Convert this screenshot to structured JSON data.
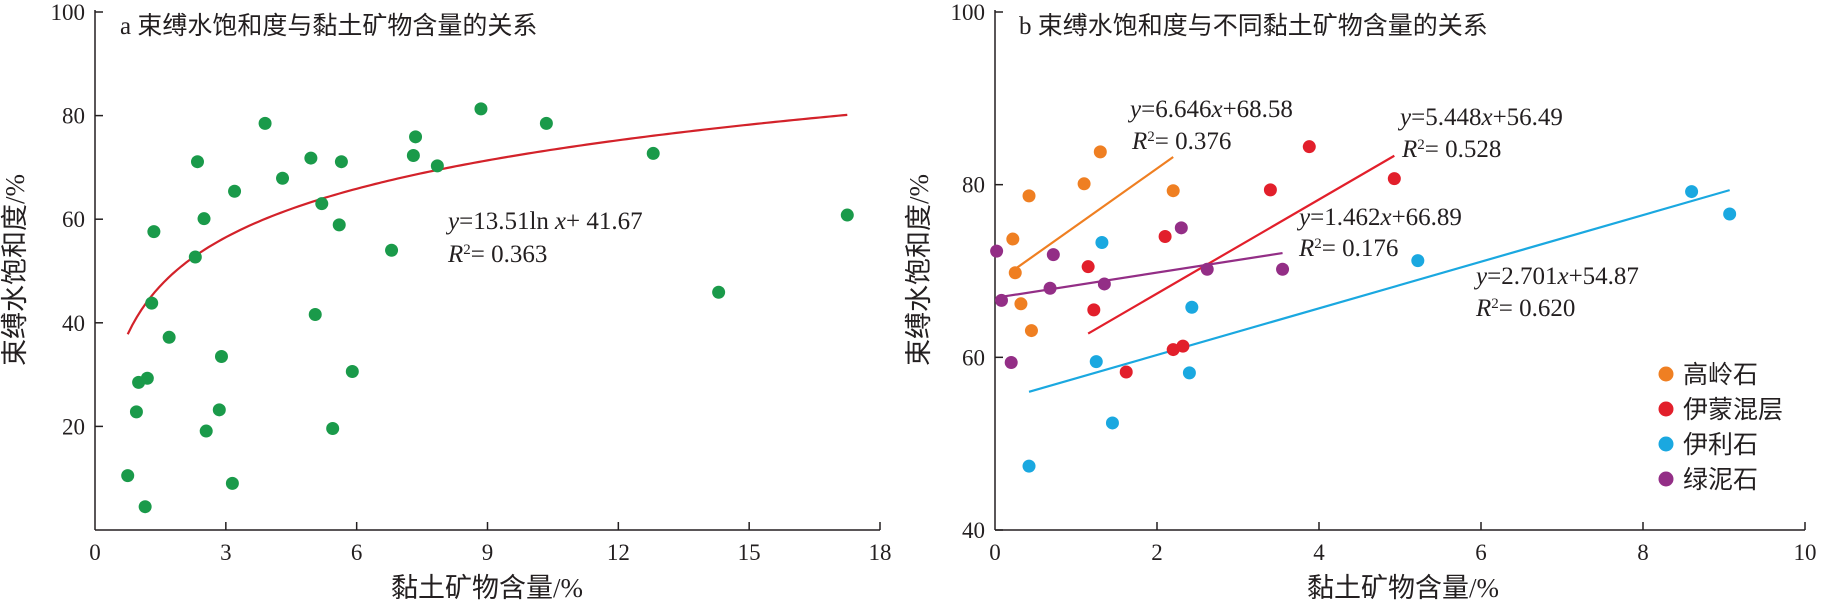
{
  "chart_data": [
    {
      "type": "scatter",
      "title": "a 束缚水饱和度与黏土矿物含量的关系",
      "xlabel": "黏土矿物含量/%",
      "ylabel": "束缚水饱和度/%",
      "xlim": [
        0,
        18
      ],
      "ylim": [
        0,
        100
      ],
      "xticks": [
        "0",
        "3",
        "6",
        "9",
        "12",
        "15",
        "18"
      ],
      "yticks": [
        "20",
        "40",
        "60",
        "80",
        "100"
      ],
      "grid": false,
      "point_color": "#1a9a4a",
      "fit_color": "#d3222a",
      "points": [
        [
          0.75,
          10.5
        ],
        [
          0.95,
          22.8
        ],
        [
          1.0,
          28.5
        ],
        [
          1.15,
          4.5
        ],
        [
          1.2,
          29.3
        ],
        [
          1.3,
          43.8
        ],
        [
          1.35,
          57.6
        ],
        [
          1.7,
          37.2
        ],
        [
          2.3,
          52.7
        ],
        [
          2.35,
          71.1
        ],
        [
          2.5,
          60.1
        ],
        [
          2.55,
          19.1
        ],
        [
          2.85,
          23.2
        ],
        [
          2.9,
          33.5
        ],
        [
          3.15,
          9.0
        ],
        [
          3.2,
          65.4
        ],
        [
          3.9,
          78.5
        ],
        [
          4.3,
          67.9
        ],
        [
          4.95,
          71.8
        ],
        [
          5.05,
          41.6
        ],
        [
          5.2,
          63.0
        ],
        [
          5.45,
          19.6
        ],
        [
          5.6,
          58.9
        ],
        [
          5.65,
          71.1
        ],
        [
          5.9,
          30.6
        ],
        [
          6.8,
          54.0
        ],
        [
          7.3,
          72.3
        ],
        [
          7.35,
          75.9
        ],
        [
          7.85,
          70.3
        ],
        [
          8.85,
          81.3
        ],
        [
          10.35,
          78.5
        ],
        [
          12.8,
          72.7
        ],
        [
          14.3,
          45.9
        ],
        [
          17.25,
          60.8
        ]
      ],
      "fit": {
        "form": "log",
        "a": 13.51,
        "b": 41.67,
        "x_from": 0.75,
        "x_to": 17.25
      },
      "equation": {
        "y": "y",
        "eq": "=13.51ln",
        "x": "x",
        "rest": "+ 41.67"
      },
      "r2": {
        "r": "R",
        "sup": "2",
        "rest": "= 0.363"
      }
    },
    {
      "type": "scatter",
      "title": "b 束缚水饱和度与不同黏土矿物含量的关系",
      "xlabel": "黏土矿物含量/%",
      "ylabel": "束缚水饱和度/%",
      "xlim": [
        0,
        10
      ],
      "ylim": [
        40,
        100
      ],
      "xticks": [
        "0",
        "2",
        "4",
        "6",
        "8",
        "10"
      ],
      "yticks": [
        "40",
        "60",
        "80",
        "100"
      ],
      "grid": false,
      "legend_position": "bottom-right",
      "series": [
        {
          "name": "高岭石",
          "color": "#ef7f22",
          "points": [
            [
              0.22,
              73.7
            ],
            [
              0.25,
              69.8
            ],
            [
              0.32,
              66.2
            ],
            [
              0.42,
              78.7
            ],
            [
              0.45,
              63.1
            ],
            [
              1.1,
              80.1
            ],
            [
              1.3,
              83.8
            ],
            [
              2.2,
              79.3
            ]
          ],
          "fit": {
            "slope": 6.646,
            "intercept": 68.58,
            "x_from": 0.2,
            "x_to": 2.2
          },
          "equation": {
            "y": "y",
            "eq": "=6.646",
            "x": "x",
            "rest": "+68.58"
          },
          "r2": {
            "r": "R",
            "sup": "2",
            "rest": "= 0.376"
          }
        },
        {
          "name": "伊蒙混层",
          "color": "#e21f2b",
          "points": [
            [
              1.15,
              70.5
            ],
            [
              1.22,
              65.5
            ],
            [
              1.62,
              58.3
            ],
            [
              2.1,
              74.0
            ],
            [
              2.2,
              60.9
            ],
            [
              2.32,
              61.3
            ],
            [
              3.4,
              79.4
            ],
            [
              3.88,
              84.4
            ],
            [
              4.93,
              80.7
            ]
          ],
          "fit": {
            "slope": 5.448,
            "intercept": 56.49,
            "x_from": 1.15,
            "x_to": 4.93
          },
          "equation": {
            "y": "y",
            "eq": "=5.448",
            "x": "x",
            "rest": "+56.49"
          },
          "r2": {
            "r": "R",
            "sup": "2",
            "rest": "= 0.528"
          }
        },
        {
          "name": "伊利石",
          "color": "#1aa8e0",
          "points": [
            [
              0.42,
              47.4
            ],
            [
              1.25,
              59.5
            ],
            [
              1.32,
              73.3
            ],
            [
              1.45,
              52.4
            ],
            [
              2.4,
              58.2
            ],
            [
              2.43,
              65.8
            ],
            [
              5.22,
              71.2
            ],
            [
              8.6,
              79.2
            ],
            [
              9.07,
              76.6
            ]
          ],
          "fit": {
            "slope": 2.701,
            "intercept": 54.87,
            "x_from": 0.42,
            "x_to": 9.07
          },
          "equation": {
            "y": "y",
            "eq": "=2.701",
            "x": "x",
            "rest": "+54.87"
          },
          "r2": {
            "r": "R",
            "sup": "2",
            "rest": "= 0.620"
          }
        },
        {
          "name": "绿泥石",
          "color": "#932e86",
          "points": [
            [
              0.02,
              72.3
            ],
            [
              0.08,
              66.6
            ],
            [
              0.2,
              59.4
            ],
            [
              0.68,
              68.0
            ],
            [
              0.72,
              71.9
            ],
            [
              1.35,
              68.5
            ],
            [
              2.3,
              75.0
            ],
            [
              2.62,
              70.2
            ],
            [
              3.55,
              70.2
            ]
          ],
          "fit": {
            "slope": 1.462,
            "intercept": 66.89,
            "x_from": 0.02,
            "x_to": 3.55
          },
          "equation": {
            "y": "y",
            "eq": "=1.462",
            "x": "x",
            "rest": "+66.89"
          },
          "r2": {
            "r": "R",
            "sup": "2",
            "rest": "= 0.176"
          }
        }
      ]
    }
  ]
}
